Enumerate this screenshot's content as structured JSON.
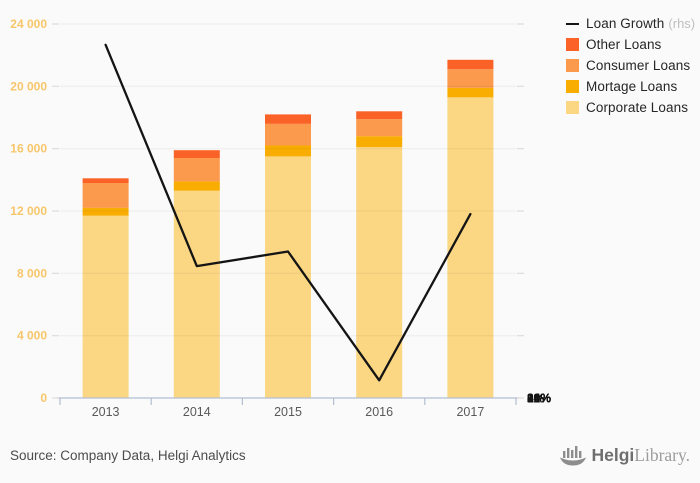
{
  "chart_data": {
    "type": "bar",
    "subtype": "stacked-bar-with-line-overlay",
    "title": "",
    "categories": [
      "2013",
      "2014",
      "2015",
      "2016",
      "2017"
    ],
    "series": [
      {
        "name": "Corporate Loans",
        "color": "#FBD683",
        "values": [
          11700,
          13300,
          15500,
          16100,
          19300
        ]
      },
      {
        "name": "Mortage Loans",
        "color": "#F8AD00",
        "values": [
          500,
          600,
          700,
          700,
          600
        ]
      },
      {
        "name": "Consumer Loans",
        "color": "#FB9A4C",
        "values": [
          1600,
          1500,
          1400,
          1100,
          1200
        ]
      },
      {
        "name": "Other Loans",
        "color": "#FA6227",
        "values": [
          300,
          500,
          600,
          500,
          600
        ]
      }
    ],
    "bar_totals": [
      14100,
      15900,
      18200,
      18400,
      21700
    ],
    "line_series": {
      "name": "Loan Growth",
      "axis": "right",
      "color": "#141414",
      "values": [
        34.0,
        12.7,
        14.1,
        1.7,
        17.7
      ]
    },
    "left_axis": {
      "max": 24000,
      "ticks": [
        0,
        4000,
        8000,
        12000,
        16000,
        20000,
        24000
      ],
      "labels": [
        "0",
        "4 000",
        "8 000",
        "12 000",
        "16 000",
        "20 000",
        "24 000"
      ],
      "label_color": "#F7C66A"
    },
    "right_axis": {
      "max": 36,
      "ticks": [
        0,
        6,
        12,
        18,
        24,
        30,
        36
      ],
      "labels": [
        "0%",
        "6%",
        "12%",
        "18%",
        "24%",
        "30%",
        "36%"
      ],
      "label_color": "#141414"
    },
    "x_axis": {
      "label_color": "#595959",
      "axis_color": "#b4bfd3"
    },
    "grid": true,
    "legend_position": "top-right",
    "plot_background": "#fafafa"
  },
  "legend": {
    "items": [
      {
        "label": "Loan Growth",
        "suffix": "(rhs)",
        "type": "line",
        "color": "#141414"
      },
      {
        "label": "Other Loans",
        "type": "box",
        "color": "#FA6227"
      },
      {
        "label": "Consumer Loans",
        "type": "box",
        "color": "#FB9A4C"
      },
      {
        "label": "Mortage Loans",
        "type": "box",
        "color": "#F8AD00"
      },
      {
        "label": "Corporate Loans",
        "type": "box",
        "color": "#FBD683"
      }
    ]
  },
  "footer": {
    "source": "Source: Company Data, Helgi Analytics",
    "logo_bold": "Helgi",
    "logo_light": "Library."
  }
}
